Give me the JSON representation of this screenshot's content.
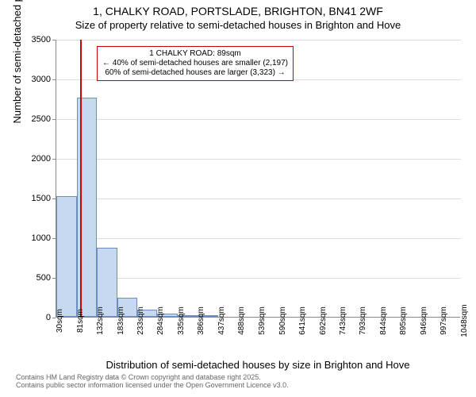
{
  "chart": {
    "type": "histogram",
    "title_main": "1, CHALKY ROAD, PORTSLADE, BRIGHTON, BN41 2WF",
    "title_sub": "Size of property relative to semi-detached houses in Brighton and Hove",
    "title_fontsize_main": 14,
    "title_fontsize_sub": 13,
    "ylabel": "Number of semi-detached properties",
    "xlabel": "Distribution of semi-detached houses by size in Brighton and Hove",
    "label_fontsize": 13,
    "tick_fontsize": 11,
    "background_color": "#ffffff",
    "grid_color": "#dddddd",
    "axis_color": "#888888",
    "bar_fill": "#c7d9f0",
    "bar_stroke": "#6c8ebf",
    "ref_line_color": "#cc0000",
    "ref_line_x": 89,
    "xlim": [
      30,
      1048
    ],
    "ylim": [
      0,
      3500
    ],
    "ytick_step": 500,
    "yticks": [
      0,
      500,
      1000,
      1500,
      2000,
      2500,
      3000,
      3500
    ],
    "xticks": [
      30,
      81,
      132,
      183,
      233,
      284,
      335,
      386,
      437,
      488,
      539,
      590,
      641,
      692,
      743,
      793,
      844,
      895,
      946,
      997,
      1048
    ],
    "xtick_unit": "sqm",
    "bar_width_data": 50.9,
    "bars": [
      {
        "x0": 30,
        "y": 1520
      },
      {
        "x0": 81,
        "y": 2760
      },
      {
        "x0": 132,
        "y": 870
      },
      {
        "x0": 183,
        "y": 240
      },
      {
        "x0": 233,
        "y": 90
      },
      {
        "x0": 284,
        "y": 40
      },
      {
        "x0": 335,
        "y": 18
      },
      {
        "x0": 386,
        "y": 10
      }
    ],
    "annotation": {
      "line1": "1 CHALKY ROAD: 89sqm",
      "line2": "← 40% of semi-detached houses are smaller (2,197)",
      "line3": "60% of semi-detached houses are larger (3,323) →",
      "border_color": "#cc0000",
      "fontsize": 10
    },
    "footer": {
      "line1": "Contains HM Land Registry data © Crown copyright and database right 2025.",
      "line2": "Contains public sector information licensed under the Open Government Licence v3.0.",
      "color": "#666666",
      "fontsize": 9
    }
  }
}
